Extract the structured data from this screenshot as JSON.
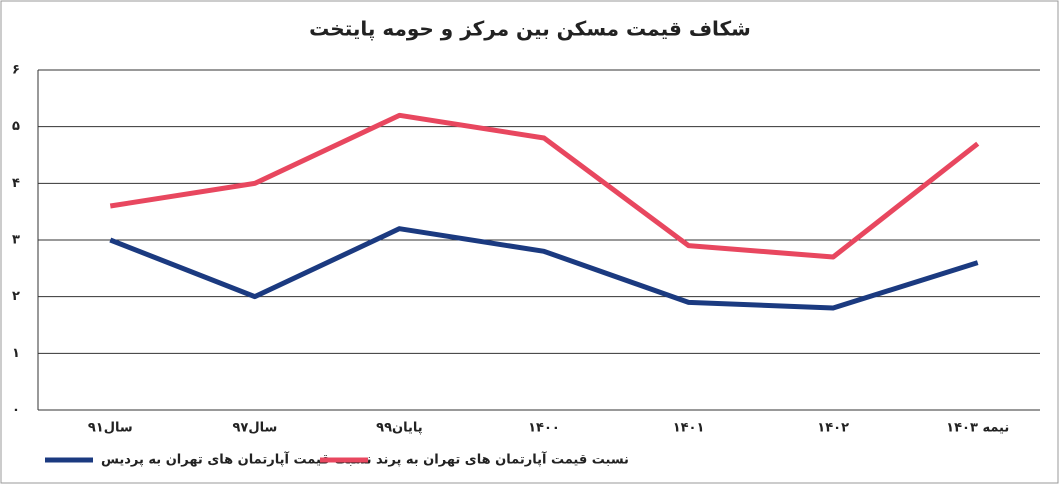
{
  "chart_data": {
    "type": "line",
    "title": "شکاف قیمت مسکن بین مرکز و حومه پایتخت",
    "categories": [
      "سال۹۱",
      "سال۹۷",
      "پایان۹۹",
      "۱۴۰۰",
      "۱۴۰۱",
      "۱۴۰۲",
      "نیمه ۱۴۰۳"
    ],
    "series": [
      {
        "name": "نسبت قیمت آپارتمان های تهران به پردیس",
        "color": "#1b3a80",
        "values": [
          3.0,
          2.0,
          3.2,
          2.8,
          1.9,
          1.8,
          2.6
        ]
      },
      {
        "name": "نسبت قیمت آپارتمان های تهران به پرند",
        "color": "#e8475f",
        "values": [
          3.6,
          4.0,
          5.2,
          4.8,
          2.9,
          2.7,
          4.7
        ]
      }
    ],
    "ylim": [
      0,
      6
    ],
    "yticks": [
      {
        "value": 0,
        "label": "۰"
      },
      {
        "value": 1,
        "label": "۱"
      },
      {
        "value": 2,
        "label": "۲"
      },
      {
        "value": 3,
        "label": "۳"
      },
      {
        "value": 4,
        "label": "۴"
      },
      {
        "value": 5,
        "label": "۵"
      },
      {
        "value": 6,
        "label": "۶"
      }
    ],
    "grid": true
  }
}
